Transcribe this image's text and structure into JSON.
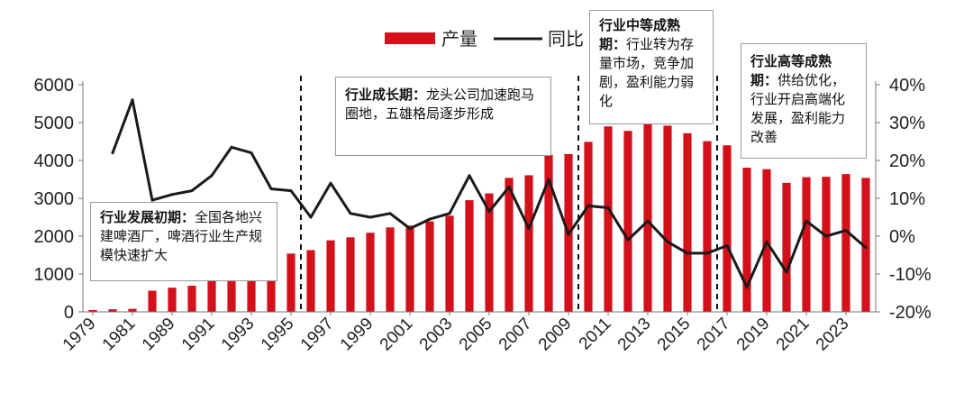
{
  "chart_data": {
    "type": "bar+line",
    "categories": [
      "1979",
      "1980",
      "1981",
      "1988",
      "1989",
      "1990",
      "1991",
      "1992",
      "1993",
      "1994",
      "1995",
      "1996",
      "1997",
      "1998",
      "1999",
      "2000",
      "2001",
      "2002",
      "2003",
      "2004",
      "2005",
      "2006",
      "2007",
      "2008",
      "2009",
      "2010",
      "2011",
      "2012",
      "2013",
      "2014",
      "2015",
      "2016",
      "2017",
      "2018",
      "2019",
      "2020",
      "2021",
      "2022",
      "2023",
      "2024"
    ],
    "x_tick_labels": [
      "1979",
      "1981",
      "1989",
      "1991",
      "1993",
      "1995",
      "1997",
      "1999",
      "2001",
      "2003",
      "2005",
      "2007",
      "2009",
      "2011",
      "2013",
      "2015",
      "2017",
      "2019",
      "2021",
      "2023"
    ],
    "series": [
      {
        "name": "产量",
        "type": "bar",
        "axis": "left",
        "color": "#d4111b",
        "values": [
          50,
          70,
          80,
          560,
          640,
          690,
          830,
          1000,
          1230,
          1390,
          1540,
          1630,
          1890,
          1970,
          2090,
          2230,
          2280,
          2390,
          2540,
          2950,
          3130,
          3540,
          3610,
          4150,
          4170,
          4490,
          4900,
          4780,
          4980,
          4920,
          4720,
          4510,
          4400,
          3810,
          3770,
          3410,
          3560,
          3570,
          3640,
          3540
        ]
      },
      {
        "name": "同比",
        "type": "line",
        "axis": "right",
        "color": "#1a1a1a",
        "values": [
          null,
          22,
          36,
          9.5,
          11,
          12,
          16,
          23.5,
          22,
          12.5,
          12,
          5,
          14,
          6,
          5,
          6,
          2,
          4.5,
          6,
          16,
          6.5,
          13,
          2,
          15,
          0.5,
          8,
          7.5,
          -1,
          4,
          -1.5,
          -4.5,
          -4.5,
          -2.5,
          -13.5,
          -1.5,
          -9.5,
          4,
          0,
          1.5,
          -3
        ]
      }
    ],
    "ylim_left": [
      0,
      6000
    ],
    "yticks_left": [
      "0",
      "1000",
      "2000",
      "3000",
      "4000",
      "5000",
      "6000"
    ],
    "ylim_right": [
      -20,
      40
    ],
    "yticks_right": [
      "-20%",
      "-10%",
      "0%",
      "10%",
      "20%",
      "30%",
      "40%"
    ],
    "phase_dividers_after": [
      "1995",
      "2009",
      "2016"
    ],
    "legend_position": "top"
  },
  "annotations": {
    "a1": {
      "title": "行业发展初期：",
      "text": "全国各地兴建啤酒厂，啤酒行业生产规模快速扩大"
    },
    "a2": {
      "title": "行业成长期：",
      "text": "龙头公司加速跑马圈地，五雄格局逐步形成"
    },
    "a3": {
      "title": "行业中等成熟期：",
      "text": "行业转为存量市场，竞争加剧，盈利能力弱化"
    },
    "a4": {
      "title": "行业高等成熟期：",
      "text": "供给优化，行业开启高端化发展，盈利能力改善"
    }
  }
}
